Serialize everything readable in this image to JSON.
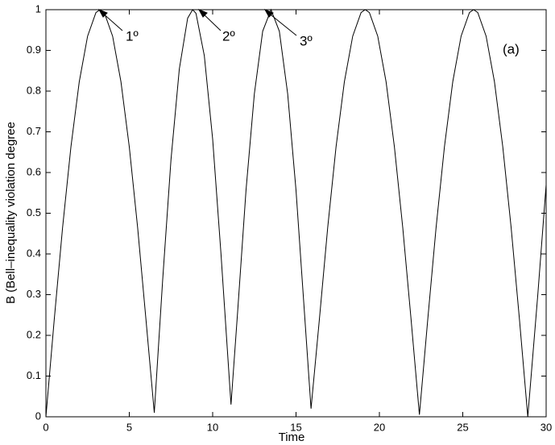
{
  "chart_data": {
    "type": "line",
    "xlabel": "Time",
    "ylabel": "B (Bell–inequality violation degree",
    "annotations": [
      "1º",
      "2º",
      "3º",
      "(a)"
    ],
    "x": [
      0,
      0.5,
      1,
      1.5,
      2,
      2.5,
      3,
      3.25,
      3.5,
      4,
      4.5,
      5,
      5.5,
      6,
      6.5,
      7,
      7.5,
      8,
      8.5,
      8.8,
      9,
      9.5,
      10,
      10.5,
      11.1,
      11.5,
      12,
      12.5,
      13,
      13.5,
      14,
      14.5,
      15,
      15.5,
      15.9,
      16.4,
      16.9,
      17.4,
      17.9,
      18.4,
      18.9,
      19.15,
      19.4,
      19.9,
      20.4,
      20.9,
      21.4,
      21.9,
      22.4,
      22.9,
      23.4,
      23.9,
      24.4,
      24.9,
      25.4,
      25.65,
      25.9,
      26.4,
      26.9,
      27.4,
      27.9,
      28.4,
      28.9,
      29.5,
      30
    ],
    "series": [
      {
        "color": "#000000",
        "values": [
          0,
          0.239,
          0.465,
          0.663,
          0.823,
          0.935,
          0.993,
          1,
          0.993,
          0.935,
          0.823,
          0.663,
          0.465,
          0.239,
          0.01,
          0.335,
          0.631,
          0.854,
          0.979,
          1,
          0.991,
          0.887,
          0.682,
          0.4,
          0.03,
          0.259,
          0.556,
          0.793,
          0.947,
          1,
          0.947,
          0.793,
          0.556,
          0.259,
          0.02,
          0.239,
          0.465,
          0.663,
          0.823,
          0.935,
          0.993,
          1,
          0.993,
          0.935,
          0.823,
          0.663,
          0.465,
          0.239,
          0.005,
          0.239,
          0.465,
          0.663,
          0.823,
          0.935,
          0.993,
          1,
          0.993,
          0.935,
          0.823,
          0.663,
          0.465,
          0.239,
          0,
          0.3,
          0.57
        ]
      }
    ],
    "xlim": [
      0,
      30
    ],
    "xticks": [
      0,
      5,
      10,
      15,
      20,
      25,
      30
    ],
    "ylim": [
      0,
      1
    ],
    "yticks": [
      0,
      0.1,
      0.2,
      0.3,
      0.4,
      0.5,
      0.6,
      0.7,
      0.8,
      0.9,
      1
    ],
    "grid": false
  }
}
